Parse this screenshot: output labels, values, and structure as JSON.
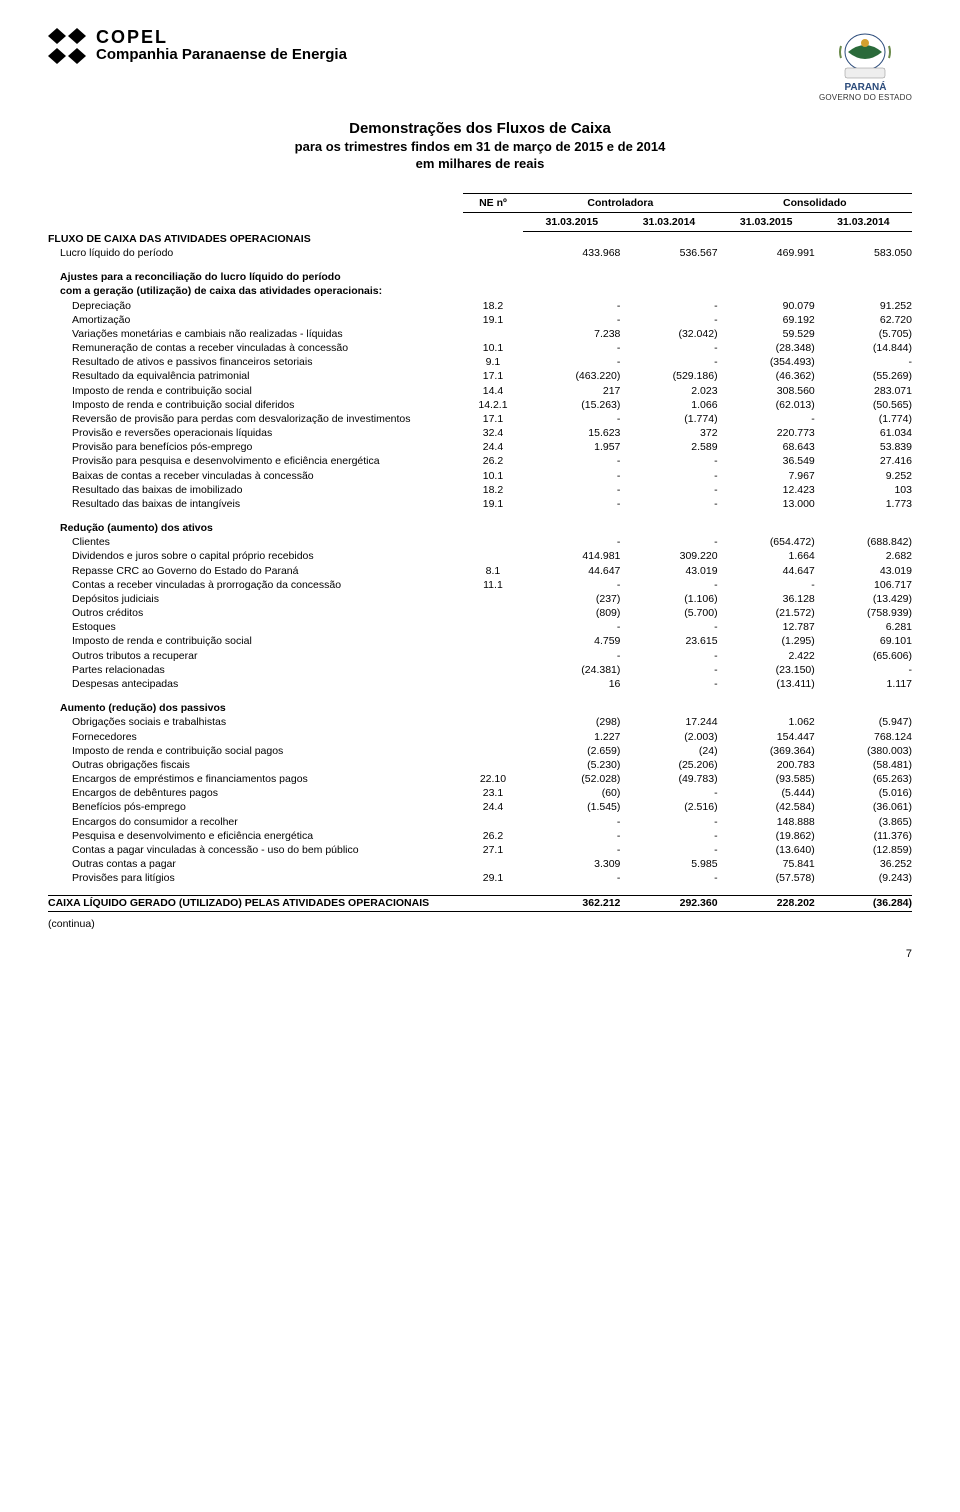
{
  "header": {
    "company_short": "COPEL",
    "company_long": "Companhia Paranaense de Energia",
    "right_logo_line1": "PARANÁ",
    "right_logo_line2": "GOVERNO DO ESTADO"
  },
  "title": {
    "line1": "Demonstrações dos Fluxos de Caixa",
    "line2": "para os trimestres findos em 31 de março de 2015 e de 2014",
    "line3": "em milhares de reais"
  },
  "columns": {
    "ne": "NE nº",
    "group1": "Controladora",
    "group2": "Consolidado",
    "dates": [
      "31.03.2015",
      "31.03.2014",
      "31.03.2015",
      "31.03.2014"
    ]
  },
  "rows": [
    {
      "type": "section",
      "label": "FLUXO DE CAIXA DAS ATIVIDADES OPERACIONAIS"
    },
    {
      "type": "line",
      "indent": 1,
      "label": "Lucro líquido do período",
      "ne": "",
      "v": [
        "433.968",
        "536.567",
        "469.991",
        "583.050"
      ]
    },
    {
      "type": "spacer"
    },
    {
      "type": "line",
      "indent": 1,
      "bold": true,
      "label": "Ajustes para a reconciliação do lucro líquido do período"
    },
    {
      "type": "line",
      "indent": 1,
      "bold": true,
      "label": "com a geração (utilização) de caixa das atividades operacionais:"
    },
    {
      "type": "line",
      "indent": 2,
      "label": "Depreciação",
      "ne": "18.2",
      "v": [
        "-",
        "-",
        "90.079",
        "91.252"
      ]
    },
    {
      "type": "line",
      "indent": 2,
      "label": "Amortização",
      "ne": "19.1",
      "v": [
        "-",
        "-",
        "69.192",
        "62.720"
      ]
    },
    {
      "type": "line",
      "indent": 2,
      "label": "Variações monetárias e cambiais não realizadas - líquidas",
      "ne": "",
      "v": [
        "7.238",
        "(32.042)",
        "59.529",
        "(5.705)"
      ]
    },
    {
      "type": "line",
      "indent": 2,
      "label": "Remuneração de contas a receber vinculadas à concessão",
      "ne": "10.1",
      "v": [
        "-",
        "-",
        "(28.348)",
        "(14.844)"
      ]
    },
    {
      "type": "line",
      "indent": 2,
      "label": "Resultado de ativos e passivos financeiros setoriais",
      "ne": "9.1",
      "v": [
        "-",
        "-",
        "(354.493)",
        "-"
      ]
    },
    {
      "type": "line",
      "indent": 2,
      "label": "Resultado da equivalência patrimonial",
      "ne": "17.1",
      "v": [
        "(463.220)",
        "(529.186)",
        "(46.362)",
        "(55.269)"
      ]
    },
    {
      "type": "line",
      "indent": 2,
      "label": "Imposto de renda e contribuição social",
      "ne": "14.4",
      "v": [
        "217",
        "2.023",
        "308.560",
        "283.071"
      ]
    },
    {
      "type": "line",
      "indent": 2,
      "label": "Imposto de renda e contribuição social diferidos",
      "ne": "14.2.1",
      "v": [
        "(15.263)",
        "1.066",
        "(62.013)",
        "(50.565)"
      ]
    },
    {
      "type": "line",
      "indent": 2,
      "label": "Reversão de provisão para perdas com desvalorização de investimentos",
      "ne": "17.1",
      "v": [
        "-",
        "(1.774)",
        "-",
        "(1.774)"
      ]
    },
    {
      "type": "line",
      "indent": 2,
      "label": "Provisão e reversões operacionais líquidas",
      "ne": "32.4",
      "v": [
        "15.623",
        "372",
        "220.773",
        "61.034"
      ]
    },
    {
      "type": "line",
      "indent": 2,
      "label": "Provisão para benefícios pós-emprego",
      "ne": "24.4",
      "v": [
        "1.957",
        "2.589",
        "68.643",
        "53.839"
      ]
    },
    {
      "type": "line",
      "indent": 2,
      "label": "Provisão para pesquisa e desenvolvimento e eficiência energética",
      "ne": "26.2",
      "v": [
        "-",
        "-",
        "36.549",
        "27.416"
      ]
    },
    {
      "type": "line",
      "indent": 2,
      "label": "Baixas de contas a receber vinculadas à concessão",
      "ne": "10.1",
      "v": [
        "-",
        "-",
        "7.967",
        "9.252"
      ]
    },
    {
      "type": "line",
      "indent": 2,
      "label": "Resultado das baixas de imobilizado",
      "ne": "18.2",
      "v": [
        "-",
        "-",
        "12.423",
        "103"
      ]
    },
    {
      "type": "line",
      "indent": 2,
      "label": "Resultado das baixas de intangíveis",
      "ne": "19.1",
      "v": [
        "-",
        "-",
        "13.000",
        "1.773"
      ]
    },
    {
      "type": "spacer"
    },
    {
      "type": "line",
      "indent": 1,
      "bold": true,
      "label": "Redução (aumento) dos ativos"
    },
    {
      "type": "line",
      "indent": 2,
      "label": "Clientes",
      "ne": "",
      "v": [
        "-",
        "-",
        "(654.472)",
        "(688.842)"
      ]
    },
    {
      "type": "line",
      "indent": 2,
      "label": "Dividendos e juros sobre o capital próprio recebidos",
      "ne": "",
      "v": [
        "414.981",
        "309.220",
        "1.664",
        "2.682"
      ]
    },
    {
      "type": "line",
      "indent": 2,
      "label": "Repasse CRC ao Governo do Estado do Paraná",
      "ne": "8.1",
      "v": [
        "44.647",
        "43.019",
        "44.647",
        "43.019"
      ]
    },
    {
      "type": "line",
      "indent": 2,
      "label": "Contas a receber vinculadas à prorrogação da concessão",
      "ne": "11.1",
      "v": [
        "-",
        "-",
        "-",
        "106.717"
      ]
    },
    {
      "type": "line",
      "indent": 2,
      "label": "Depósitos judiciais",
      "ne": "",
      "v": [
        "(237)",
        "(1.106)",
        "36.128",
        "(13.429)"
      ]
    },
    {
      "type": "line",
      "indent": 2,
      "label": "Outros créditos",
      "ne": "",
      "v": [
        "(809)",
        "(5.700)",
        "(21.572)",
        "(758.939)"
      ]
    },
    {
      "type": "line",
      "indent": 2,
      "label": "Estoques",
      "ne": "",
      "v": [
        "-",
        "-",
        "12.787",
        "6.281"
      ]
    },
    {
      "type": "line",
      "indent": 2,
      "label": "Imposto de renda e contribuição social",
      "ne": "",
      "v": [
        "4.759",
        "23.615",
        "(1.295)",
        "69.101"
      ]
    },
    {
      "type": "line",
      "indent": 2,
      "label": "Outros tributos a recuperar",
      "ne": "",
      "v": [
        "-",
        "-",
        "2.422",
        "(65.606)"
      ]
    },
    {
      "type": "line",
      "indent": 2,
      "label": "Partes relacionadas",
      "ne": "",
      "v": [
        "(24.381)",
        "-",
        "(23.150)",
        "-"
      ]
    },
    {
      "type": "line",
      "indent": 2,
      "label": "Despesas antecipadas",
      "ne": "",
      "v": [
        "16",
        "-",
        "(13.411)",
        "1.117"
      ]
    },
    {
      "type": "spacer"
    },
    {
      "type": "line",
      "indent": 1,
      "bold": true,
      "label": "Aumento (redução) dos passivos"
    },
    {
      "type": "line",
      "indent": 2,
      "label": "Obrigações sociais e trabalhistas",
      "ne": "",
      "v": [
        "(298)",
        "17.244",
        "1.062",
        "(5.947)"
      ]
    },
    {
      "type": "line",
      "indent": 2,
      "label": "Fornecedores",
      "ne": "",
      "v": [
        "1.227",
        "(2.003)",
        "154.447",
        "768.124"
      ]
    },
    {
      "type": "line",
      "indent": 2,
      "label": "Imposto de renda e contribuição social pagos",
      "ne": "",
      "v": [
        "(2.659)",
        "(24)",
        "(369.364)",
        "(380.003)"
      ]
    },
    {
      "type": "line",
      "indent": 2,
      "label": "Outras obrigações fiscais",
      "ne": "",
      "v": [
        "(5.230)",
        "(25.206)",
        "200.783",
        "(58.481)"
      ]
    },
    {
      "type": "line",
      "indent": 2,
      "label": "Encargos de empréstimos e financiamentos pagos",
      "ne": "22.10",
      "v": [
        "(52.028)",
        "(49.783)",
        "(93.585)",
        "(65.263)"
      ]
    },
    {
      "type": "line",
      "indent": 2,
      "label": "Encargos de debêntures pagos",
      "ne": "23.1",
      "v": [
        "(60)",
        "-",
        "(5.444)",
        "(5.016)"
      ]
    },
    {
      "type": "line",
      "indent": 2,
      "label": "Benefícios pós-emprego",
      "ne": "24.4",
      "v": [
        "(1.545)",
        "(2.516)",
        "(42.584)",
        "(36.061)"
      ]
    },
    {
      "type": "line",
      "indent": 2,
      "label": "Encargos do consumidor a recolher",
      "ne": "",
      "v": [
        "-",
        "-",
        "148.888",
        "(3.865)"
      ]
    },
    {
      "type": "line",
      "indent": 2,
      "label": "Pesquisa e desenvolvimento e eficiência energética",
      "ne": "26.2",
      "v": [
        "-",
        "-",
        "(19.862)",
        "(11.376)"
      ]
    },
    {
      "type": "line",
      "indent": 2,
      "label": "Contas a pagar vinculadas à concessão - uso do bem público",
      "ne": "27.1",
      "v": [
        "-",
        "-",
        "(13.640)",
        "(12.859)"
      ]
    },
    {
      "type": "line",
      "indent": 2,
      "label": "Outras contas a pagar",
      "ne": "",
      "v": [
        "3.309",
        "5.985",
        "75.841",
        "36.252"
      ]
    },
    {
      "type": "line",
      "indent": 2,
      "label": "Provisões para litígios",
      "ne": "29.1",
      "v": [
        "-",
        "-",
        "(57.578)",
        "(9.243)"
      ]
    },
    {
      "type": "spacer"
    },
    {
      "type": "total",
      "label": "CAIXA LÍQUIDO GERADO (UTILIZADO) PELAS ATIVIDADES OPERACIONAIS",
      "ne": "",
      "v": [
        "362.212",
        "292.360",
        "228.202",
        "(36.284)"
      ]
    }
  ],
  "continua": "(continua)",
  "page_number": "7"
}
